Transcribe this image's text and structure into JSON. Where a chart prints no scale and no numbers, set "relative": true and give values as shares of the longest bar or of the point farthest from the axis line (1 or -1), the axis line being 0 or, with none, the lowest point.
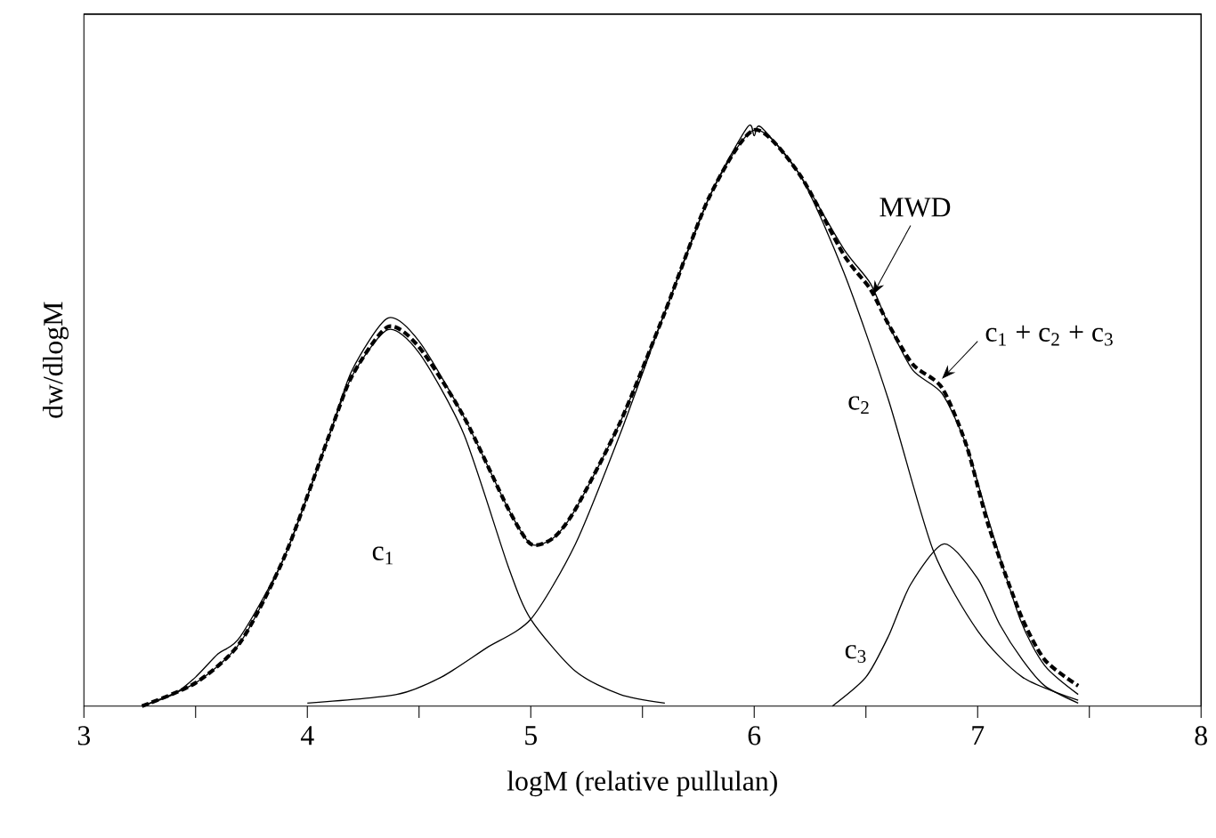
{
  "chart_data": {
    "type": "line",
    "relative": true,
    "xlabel": "logM (relative pullulan)",
    "ylabel": "dw/dlogM",
    "xlim": [
      3,
      8
    ],
    "xticks": [
      3,
      {
        "value": 3.5,
        "label": null
      },
      4,
      {
        "value": 4.5,
        "label": null
      },
      5,
      {
        "value": 5.5,
        "label": null
      },
      6,
      {
        "value": 6.5,
        "label": null
      },
      7,
      {
        "value": 7.5,
        "label": null
      },
      8
    ],
    "marker": "none",
    "series": [
      {
        "name": "MWD",
        "color": "#000000",
        "line_style": "solid",
        "x": [
          3.26,
          3.4,
          3.5,
          3.6,
          3.7,
          3.9,
          4.1,
          4.2,
          4.36,
          4.5,
          4.7,
          4.9,
          5.0,
          5.1,
          5.2,
          5.4,
          5.6,
          5.8,
          5.97,
          6.0,
          6.03,
          6.2,
          6.4,
          6.52,
          6.6,
          6.71,
          6.84,
          6.95,
          7.05,
          7.19,
          7.3,
          7.45
        ],
        "values": [
          0,
          0.02,
          0.05,
          0.09,
          0.12,
          0.26,
          0.47,
          0.58,
          0.67,
          0.63,
          0.5,
          0.34,
          0.28,
          0.29,
          0.34,
          0.49,
          0.68,
          0.88,
          1.0,
          0.985,
          1.0,
          0.92,
          0.79,
          0.73,
          0.66,
          0.58,
          0.54,
          0.45,
          0.32,
          0.15,
          0.07,
          0.02
        ]
      },
      {
        "name": "c$_{1}$ + c$_{2}$ + c$_{3}$",
        "color": "#000000",
        "line_style": "dashed",
        "x": [
          3.26,
          3.5,
          3.7,
          3.9,
          4.1,
          4.2,
          4.36,
          4.5,
          4.7,
          4.9,
          5.0,
          5.1,
          5.2,
          5.4,
          5.6,
          5.8,
          6.0,
          6.2,
          6.4,
          6.52,
          6.6,
          6.71,
          6.84,
          6.95,
          7.05,
          7.19,
          7.3,
          7.45
        ],
        "values": [
          0,
          0.04,
          0.11,
          0.26,
          0.47,
          0.57,
          0.655,
          0.62,
          0.5,
          0.34,
          0.28,
          0.29,
          0.34,
          0.49,
          0.68,
          0.88,
          0.995,
          0.92,
          0.78,
          0.72,
          0.66,
          0.59,
          0.55,
          0.45,
          0.31,
          0.16,
          0.08,
          0.035
        ]
      },
      {
        "name": "c$_{1}$",
        "color": "#000000",
        "line_style": "solid",
        "x": [
          3.26,
          3.5,
          3.7,
          3.9,
          4.1,
          4.2,
          4.36,
          4.5,
          4.7,
          4.9,
          5.0,
          5.2,
          5.4,
          5.6
        ],
        "values": [
          0,
          0.04,
          0.11,
          0.26,
          0.47,
          0.57,
          0.65,
          0.61,
          0.47,
          0.24,
          0.15,
          0.06,
          0.02,
          0.005
        ]
      },
      {
        "name": "c$_{2}$",
        "color": "#000000",
        "line_style": "solid",
        "x": [
          4.0,
          4.4,
          4.6,
          4.8,
          5.0,
          5.2,
          5.4,
          5.6,
          5.8,
          6.0,
          6.2,
          6.4,
          6.6,
          6.8,
          7.0,
          7.2,
          7.45
        ],
        "values": [
          0.005,
          0.02,
          0.05,
          0.1,
          0.15,
          0.28,
          0.47,
          0.68,
          0.88,
          0.995,
          0.92,
          0.75,
          0.53,
          0.27,
          0.13,
          0.05,
          0.01
        ]
      },
      {
        "name": "c$_{3}$",
        "color": "#000000",
        "line_style": "solid",
        "x": [
          6.35,
          6.5,
          6.6,
          6.7,
          6.85,
          7.0,
          7.1,
          7.2,
          7.3,
          7.45
        ],
        "values": [
          0,
          0.05,
          0.12,
          0.21,
          0.28,
          0.22,
          0.14,
          0.08,
          0.035,
          0.005
        ]
      }
    ]
  }
}
